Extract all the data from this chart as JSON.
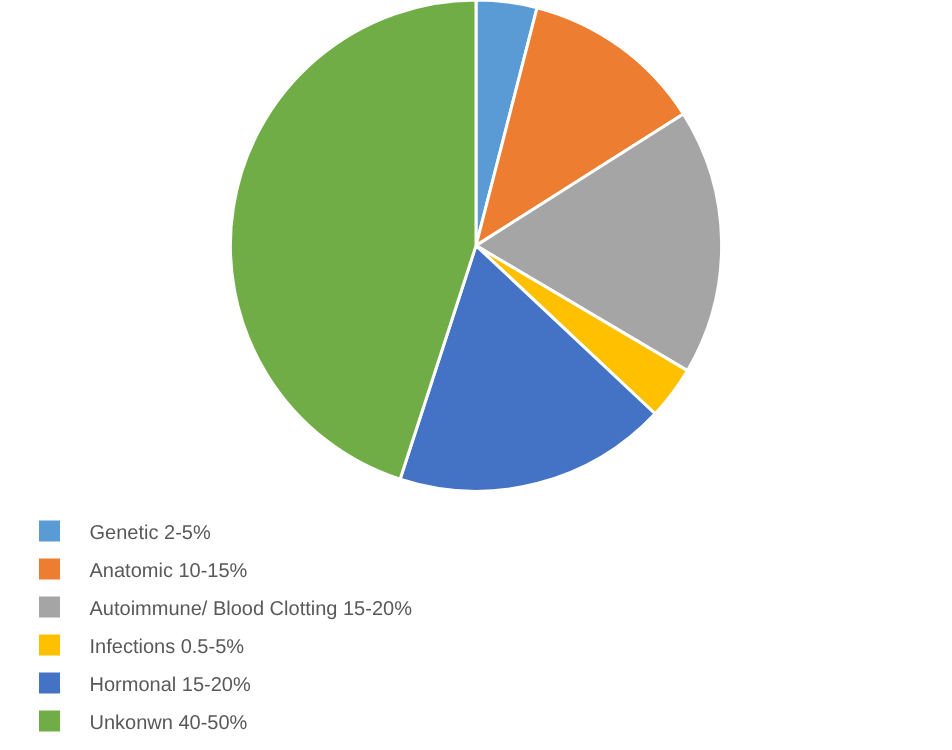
{
  "chart_data": {
    "type": "pie",
    "categories": [
      "Genetic 2-5%",
      "Anatomic 10-15%",
      "Autoimmune/ Blood Clotting 15-20%",
      "Infections 0.5-5%",
      "Hormonal 15-20%",
      "Unkonwn 40-50%"
    ],
    "values": [
      4,
      12,
      17.5,
      3.5,
      18,
      45
    ],
    "colors": [
      "#5b9bd5",
      "#ed7d31",
      "#a5a5a5",
      "#ffc000",
      "#4472c4",
      "#70ad47"
    ],
    "legend": "bottom left"
  }
}
